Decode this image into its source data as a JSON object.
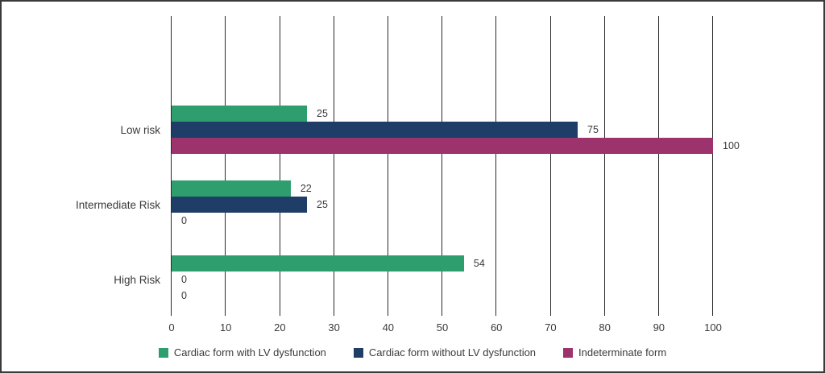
{
  "chart_data": {
    "type": "bar",
    "orientation": "horizontal",
    "title": "",
    "xlabel": "",
    "ylabel": "",
    "categories": [
      "Low risk",
      "Intermediate Risk",
      "High Risk"
    ],
    "series": [
      {
        "name": "Cardiac form with LV dysfunction",
        "color": "#2f9e6e",
        "values": [
          25,
          22,
          54
        ]
      },
      {
        "name": "Cardiac form without LV dysfunction",
        "color": "#1e3e68",
        "values": [
          75,
          25,
          0
        ]
      },
      {
        "name": "Indeterminate form",
        "color": "#9c336c",
        "values": [
          100,
          0,
          0
        ]
      }
    ],
    "xlim": [
      0,
      100
    ],
    "x_ticks": [
      0,
      10,
      20,
      30,
      40,
      50,
      60,
      70,
      80,
      90,
      100
    ],
    "grid": "vertical-only",
    "value_labels": true,
    "legend_position": "bottom-center"
  },
  "colors": {
    "background": "#ffffff",
    "frame_border": "#3a3a3a",
    "gridline": "#2b2b2b",
    "text": "#3a3a3a"
  }
}
